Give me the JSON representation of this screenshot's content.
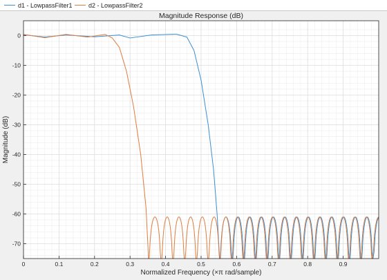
{
  "legend": {
    "entries": [
      {
        "label": "d1 - LowpassFilter1",
        "color": "#3a8ed4"
      },
      {
        "label": "d2 - LowpassFilter2",
        "color": "#e07b3c"
      }
    ]
  },
  "chart_data": {
    "type": "line",
    "title": "Magnitude Response (dB)",
    "xlabel": "Normalized Frequency (×π rad/sample)",
    "ylabel": "Magnitude (dB)",
    "xlim": [
      0,
      1
    ],
    "ylim": [
      -75,
      5
    ],
    "xticks": [
      0,
      0.1,
      0.2,
      0.3,
      0.4,
      0.5,
      0.6,
      0.7,
      0.8,
      0.9
    ],
    "xtick_labels": [
      "0",
      "0.1",
      "0.2",
      "0.3",
      "0.4",
      "0.5",
      "0.6",
      "0.7",
      "0.8",
      "0.9"
    ],
    "yticks": [
      0,
      -10,
      -20,
      -30,
      -40,
      -50,
      -60,
      -70
    ],
    "ytick_labels": [
      "0",
      "-10",
      "-20",
      "-30",
      "-40",
      "-50",
      "-60",
      "-70"
    ],
    "grid": true,
    "series": [
      {
        "name": "d1 - LowpassFilter1",
        "color": "#3a8ed4",
        "passband_points": [
          [
            0,
            0.3
          ],
          [
            0.06,
            -0.5
          ],
          [
            0.12,
            0.2
          ],
          [
            0.2,
            -0.4
          ],
          [
            0.27,
            0.2
          ],
          [
            0.3,
            -0.8
          ],
          [
            0.36,
            0.2
          ],
          [
            0.43,
            0.5
          ],
          [
            0.46,
            -0.5
          ],
          [
            0.48,
            -5
          ],
          [
            0.5,
            -15
          ],
          [
            0.52,
            -30
          ],
          [
            0.535,
            -45
          ],
          [
            0.545,
            -60
          ],
          [
            0.552,
            -75
          ]
        ],
        "stopband_peak": -61,
        "stopband_nulls": [
          0.552,
          0.588,
          0.621,
          0.654,
          0.687,
          0.72,
          0.753,
          0.786,
          0.819,
          0.852,
          0.885,
          0.918,
          0.951,
          0.984
        ]
      },
      {
        "name": "d2 - LowpassFilter2",
        "color": "#e07b3c",
        "passband_points": [
          [
            0,
            0.4
          ],
          [
            0.06,
            -0.7
          ],
          [
            0.12,
            0.4
          ],
          [
            0.18,
            -0.5
          ],
          [
            0.23,
            0.4
          ],
          [
            0.25,
            -0.8
          ],
          [
            0.27,
            -4
          ],
          [
            0.29,
            -12
          ],
          [
            0.31,
            -24
          ],
          [
            0.33,
            -40
          ],
          [
            0.345,
            -58
          ],
          [
            0.352,
            -75
          ]
        ],
        "stopband_peak": -61,
        "stopband_nulls": [
          0.352,
          0.388,
          0.421,
          0.454,
          0.487,
          0.52,
          0.553,
          0.586,
          0.619,
          0.652,
          0.685,
          0.718,
          0.751,
          0.784,
          0.817,
          0.85,
          0.883,
          0.916,
          0.949,
          0.982
        ]
      }
    ]
  }
}
